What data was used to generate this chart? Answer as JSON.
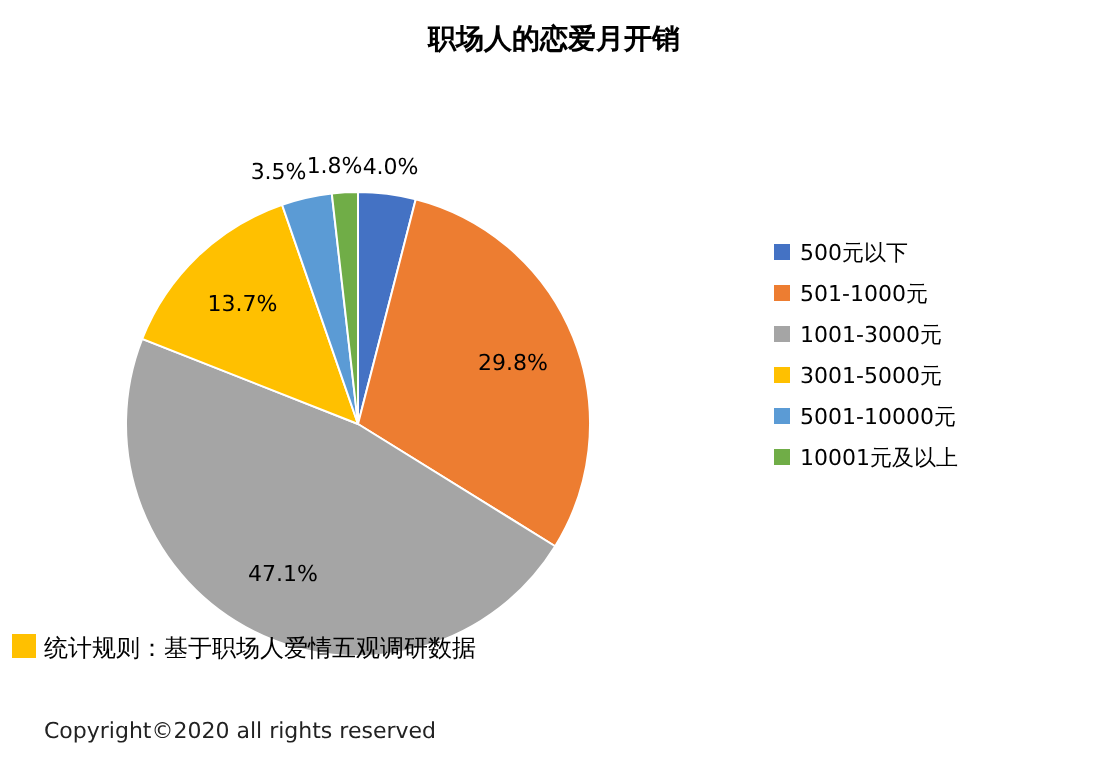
{
  "chart_data": {
    "type": "pie",
    "title": "职场人的恋爱月开销",
    "categories": [
      "500元以下",
      "501-1000元",
      "1001-3000元",
      "3001-5000元",
      "5001-10000元",
      "10001元及以上"
    ],
    "values": [
      4.0,
      29.8,
      47.1,
      13.7,
      3.5,
      1.8
    ],
    "value_labels": [
      "4.0%",
      "29.8%",
      "47.1%",
      "13.7%",
      "3.5%",
      "1.8%"
    ],
    "colors": [
      "#4472c4",
      "#ed7d31",
      "#a5a5a5",
      "#ffc000",
      "#5b9bd5",
      "#70ad47"
    ],
    "legend": "right",
    "annotations": [
      "统计规则：基于职场人爱情五观调研数据",
      "Copyright©2020 all rights reserved"
    ]
  }
}
